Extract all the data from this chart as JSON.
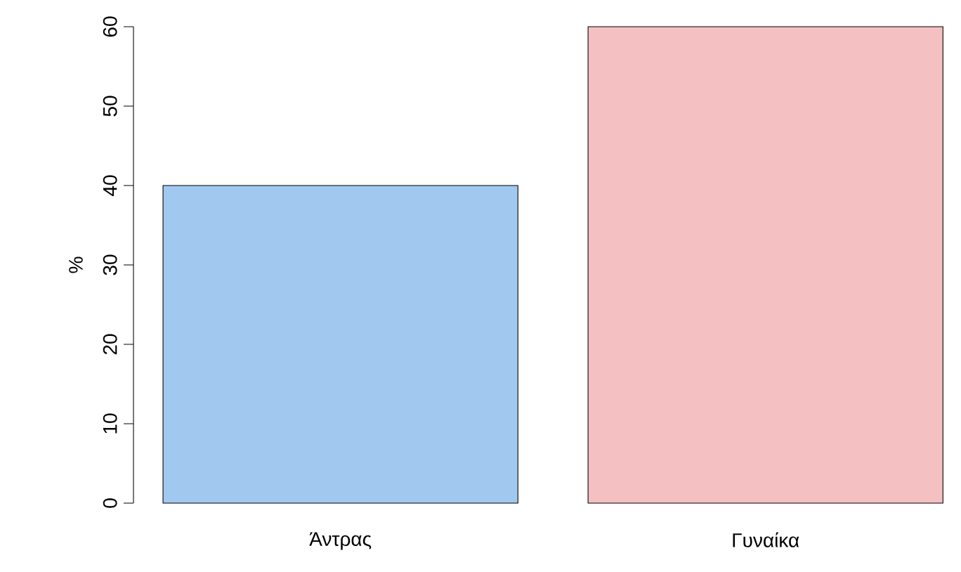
{
  "chart_data": {
    "type": "bar",
    "ylabel": "%",
    "categories": [
      "Άντρας",
      "Γυναίκα"
    ],
    "values": [
      40,
      60
    ],
    "colors": [
      "#a1c9f0",
      "#f4c0c2"
    ],
    "ylim": [
      0,
      60
    ],
    "yticks": [
      0,
      10,
      20,
      30,
      40,
      50,
      60
    ]
  }
}
